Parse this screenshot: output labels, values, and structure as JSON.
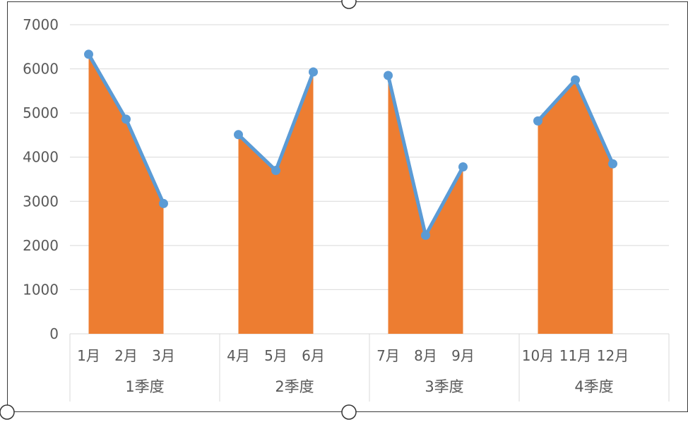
{
  "chart_data": {
    "type": "area",
    "xlabel": "",
    "ylabel": "",
    "ylim": [
      0,
      7000
    ],
    "yticks": [
      "0",
      "1000",
      "2000",
      "3000",
      "4000",
      "5000",
      "6000",
      "7000"
    ],
    "grid": true,
    "groups": [
      {
        "label": "1季度",
        "categories": [
          "1月",
          "2月",
          "3月"
        ],
        "values": [
          6330,
          4860,
          2950
        ]
      },
      {
        "label": "2季度",
        "categories": [
          "4月",
          "5月",
          "6月"
        ],
        "values": [
          4510,
          3700,
          5930
        ]
      },
      {
        "label": "3季度",
        "categories": [
          "7月",
          "8月",
          "9月"
        ],
        "values": [
          5850,
          2230,
          3780
        ]
      },
      {
        "label": "4季度",
        "categories": [
          "10月",
          "11月",
          "12月"
        ],
        "values": [
          4820,
          5750,
          3850
        ]
      }
    ],
    "colors": {
      "area": "#ED7D31",
      "line": "#5B9BD5",
      "grid": "#D9D9D9",
      "axis_text": "#595959"
    }
  }
}
